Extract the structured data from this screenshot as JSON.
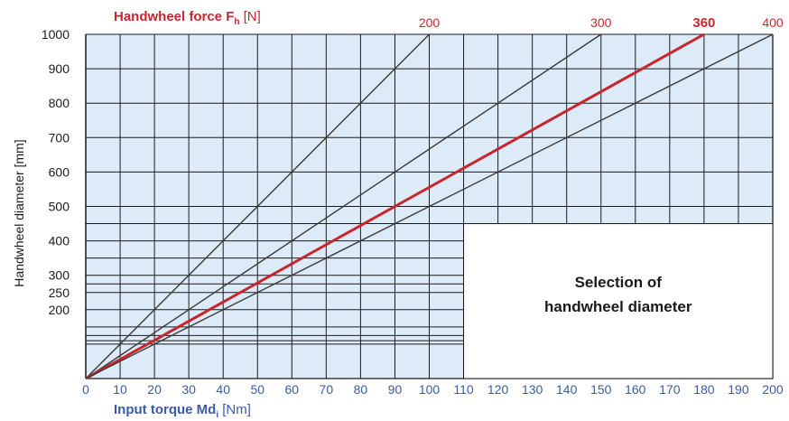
{
  "chart_data": {
    "type": "line",
    "title_prefix": "Handwheel force F",
    "title_subscript": "h",
    "title_unit": " [N]",
    "xlabel_prefix": "Input torque Md",
    "xlabel_subscript": "i",
    "xlabel_unit": " [Nm]",
    "ylabel": "Handwheel diameter [mm]",
    "xlim": [
      0,
      200
    ],
    "ylim": [
      0,
      1000
    ],
    "x_ticks": [
      "0",
      "10",
      "20",
      "30",
      "40",
      "50",
      "60",
      "70",
      "80",
      "90",
      "100",
      "110",
      "120",
      "130",
      "140",
      "150",
      "160",
      "170",
      "180",
      "190",
      "200"
    ],
    "y_tick_labels": [
      {
        "value": 1000,
        "label": "1000"
      },
      {
        "value": 900,
        "label": "900"
      },
      {
        "value": 800,
        "label": "800"
      },
      {
        "value": 700,
        "label": "700"
      },
      {
        "value": 600,
        "label": "600"
      },
      {
        "value": 500,
        "label": "500"
      },
      {
        "value": 400,
        "label": "400"
      },
      {
        "value": 300,
        "label": "300"
      },
      {
        "value": 250,
        "label": "250"
      },
      {
        "value": 200,
        "label": "200"
      }
    ],
    "series": [
      {
        "name": "200",
        "highlight": false,
        "color": "#3a3a3a",
        "x": [
          0,
          100
        ],
        "y": [
          0,
          1000
        ]
      },
      {
        "name": "300",
        "highlight": false,
        "color": "#3a3a3a",
        "x": [
          0,
          150
        ],
        "y": [
          0,
          1000
        ]
      },
      {
        "name": "360",
        "highlight": true,
        "color": "#c8262e",
        "x": [
          0,
          180
        ],
        "y": [
          0,
          1000
        ]
      },
      {
        "name": "400",
        "highlight": false,
        "color": "#3a3a3a",
        "x": [
          0,
          200
        ],
        "y": [
          0,
          1000
        ]
      }
    ],
    "grid": true,
    "annotation_box": {
      "lines": [
        "Selection of",
        "handwheel diameter"
      ]
    }
  },
  "colors": {
    "plot_bg": "#dcebf7",
    "grid": "#1a1a1a",
    "accent_red": "#c8262e",
    "axis_blue": "#3d5aa8"
  }
}
